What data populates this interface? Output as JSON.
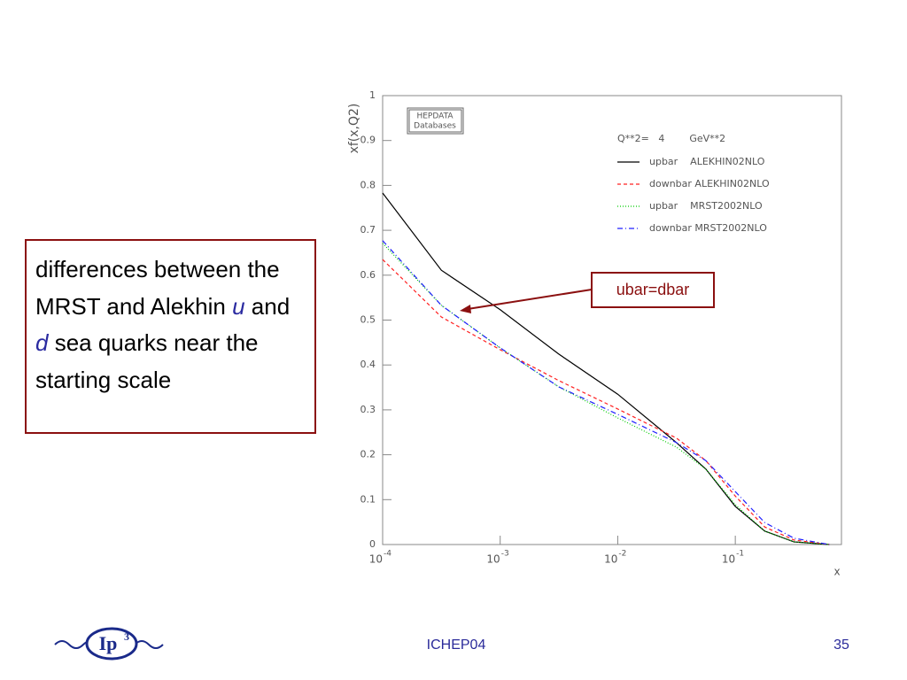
{
  "chart_data": {
    "type": "line",
    "y_label": "xf(x,Q2)",
    "x_label": "x",
    "stamp": [
      "HEPDATA",
      "Databases"
    ],
    "legend_title": "Q**2=   4        GeV**2",
    "log_x": true,
    "x": [
      0.0001,
      0.000316,
      0.001,
      0.00316,
      0.01,
      0.0316,
      0.0562,
      0.1,
      0.178,
      0.316,
      0.631
    ],
    "series": [
      {
        "name": "upbar    ALEKHIN02NLO",
        "color": "#000000",
        "style": "solid",
        "values": [
          0.783,
          0.611,
          0.523,
          0.424,
          0.335,
          0.227,
          0.168,
          0.085,
          0.03,
          0.006,
          0
        ]
      },
      {
        "name": "downbar ALEKHIN02NLO",
        "color": "#ff2020",
        "style": "dashed",
        "values": [
          0.635,
          0.507,
          0.434,
          0.365,
          0.302,
          0.237,
          0.187,
          0.108,
          0.039,
          0.01,
          0
        ]
      },
      {
        "name": "upbar    MRST2002NLO",
        "color": "#00cc00",
        "style": "dotted",
        "values": [
          0.671,
          0.533,
          0.438,
          0.351,
          0.282,
          0.217,
          0.168,
          0.089,
          0.03,
          0.006,
          0
        ]
      },
      {
        "name": "downbar MRST2002NLO",
        "color": "#2020ff",
        "style": "dashdot",
        "values": [
          0.677,
          0.533,
          0.438,
          0.351,
          0.29,
          0.227,
          0.187,
          0.118,
          0.049,
          0.014,
          0
        ]
      }
    ],
    "xlim": [
      0.0001,
      0.8
    ],
    "xticks": [
      {
        "value": 0.0001,
        "label": "10",
        "exponent": "-4"
      },
      {
        "value": 0.001,
        "label": "10",
        "exponent": "-3"
      },
      {
        "value": 0.01,
        "label": "10",
        "exponent": "-2"
      },
      {
        "value": 0.1,
        "label": "10",
        "exponent": "-1"
      }
    ],
    "ylim": [
      0,
      1
    ],
    "yticks": [
      0,
      0.1,
      0.2,
      0.3,
      0.4,
      0.5,
      0.6,
      0.7,
      0.8,
      0.9,
      1
    ],
    "callout": "ubar=dbar"
  },
  "textbox": [
    "differences between the MRST and Alekhin ",
    "u",
    " and ",
    "d",
    " sea quarks near the starting scale"
  ],
  "footer": {
    "logo": "Ip",
    "logo_sup": "3",
    "center": "ICHEP04",
    "page": "35"
  }
}
